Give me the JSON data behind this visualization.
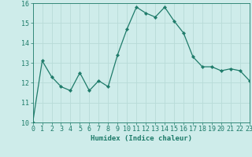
{
  "title": "",
  "xlabel": "Humidex (Indice chaleur)",
  "ylabel": "",
  "x_values": [
    0,
    1,
    2,
    3,
    4,
    5,
    6,
    7,
    8,
    9,
    10,
    11,
    12,
    13,
    14,
    15,
    16,
    17,
    18,
    19,
    20,
    21,
    22,
    23
  ],
  "y_values": [
    10.0,
    13.1,
    12.3,
    11.8,
    11.6,
    12.5,
    11.6,
    12.1,
    11.8,
    13.4,
    14.7,
    15.8,
    15.5,
    15.3,
    15.8,
    15.1,
    14.5,
    13.3,
    12.8,
    12.8,
    12.6,
    12.7,
    12.6,
    12.1
  ],
  "line_color": "#1e7b6a",
  "marker": "D",
  "marker_size": 2.2,
  "background_color": "#ceecea",
  "grid_color": "#b8dbd8",
  "ylim": [
    10,
    16
  ],
  "xlim": [
    0,
    23
  ],
  "yticks": [
    10,
    11,
    12,
    13,
    14,
    15,
    16
  ],
  "xticks": [
    0,
    1,
    2,
    3,
    4,
    5,
    6,
    7,
    8,
    9,
    10,
    11,
    12,
    13,
    14,
    15,
    16,
    17,
    18,
    19,
    20,
    21,
    22,
    23
  ],
  "tick_color": "#1e7b6a",
  "label_fontsize": 6.5,
  "tick_fontsize": 6.0
}
